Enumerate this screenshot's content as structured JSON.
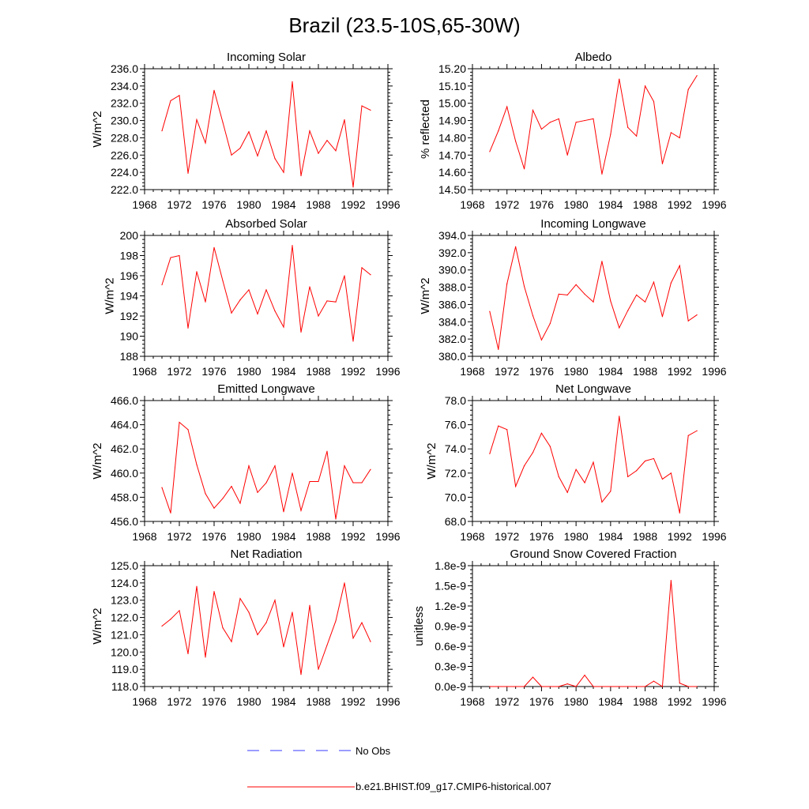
{
  "title": "Brazil (23.5-10S,65-30W)",
  "legend": {
    "entries": [
      {
        "label": "No Obs",
        "color": "#3a3aff",
        "style": "dashed"
      },
      {
        "label": "b.e21.BHIST.f09_g17.CMIP6-historical.007",
        "color": "#ff0000",
        "style": "solid"
      }
    ],
    "placement": "bottom-center"
  },
  "chart_data": [
    {
      "type": "line",
      "title": "Incoming Solar",
      "xlabel": "",
      "ylabel": "W/m^2",
      "xlim": [
        1968,
        1996
      ],
      "ylim": [
        222.0,
        236.0
      ],
      "xticks": [
        "1968",
        "1972",
        "1976",
        "1980",
        "1984",
        "1988",
        "1992",
        "1996"
      ],
      "yticks": [
        "222.0",
        "224.0",
        "226.0",
        "228.0",
        "230.0",
        "232.0",
        "234.0",
        "236.0"
      ],
      "x": [
        1970,
        1971,
        1972,
        1973,
        1974,
        1975,
        1976,
        1977,
        1978,
        1979,
        1980,
        1981,
        1982,
        1983,
        1984,
        1985,
        1986,
        1987,
        1988,
        1989,
        1990,
        1991,
        1992,
        1993,
        1994
      ],
      "series": [
        {
          "color": "#ff0000",
          "values": [
            228.8,
            232.3,
            232.9,
            223.9,
            230.1,
            227.4,
            233.5,
            229.8,
            226.0,
            226.8,
            228.7,
            225.9,
            228.8,
            225.6,
            224.0,
            234.5,
            223.6,
            228.8,
            226.2,
            227.7,
            226.5,
            230.1,
            222.3,
            231.7,
            231.2
          ]
        }
      ]
    },
    {
      "type": "line",
      "title": "Albedo",
      "xlabel": "",
      "ylabel": "% reflected",
      "xlim": [
        1968,
        1996
      ],
      "ylim": [
        14.5,
        15.2
      ],
      "xticks": [
        "1968",
        "1972",
        "1976",
        "1980",
        "1984",
        "1988",
        "1992",
        "1996"
      ],
      "yticks": [
        "14.50",
        "14.60",
        "14.70",
        "14.80",
        "14.90",
        "15.00",
        "15.10",
        "15.20"
      ],
      "x": [
        1970,
        1971,
        1972,
        1973,
        1974,
        1975,
        1976,
        1977,
        1978,
        1979,
        1980,
        1981,
        1982,
        1983,
        1984,
        1985,
        1986,
        1987,
        1988,
        1989,
        1990,
        1991,
        1992,
        1993,
        1994
      ],
      "series": [
        {
          "color": "#ff0000",
          "values": [
            14.72,
            14.84,
            14.98,
            14.78,
            14.62,
            14.96,
            14.85,
            14.89,
            14.91,
            14.7,
            14.89,
            14.9,
            14.91,
            14.59,
            14.82,
            15.14,
            14.86,
            14.81,
            15.1,
            15.01,
            14.65,
            14.83,
            14.8,
            15.08,
            15.16
          ]
        }
      ]
    },
    {
      "type": "line",
      "title": "Absorbed Solar",
      "xlabel": "",
      "ylabel": "W/m^2",
      "xlim": [
        1968,
        1996
      ],
      "ylim": [
        188,
        200
      ],
      "xticks": [
        "1968",
        "1972",
        "1976",
        "1980",
        "1984",
        "1988",
        "1992",
        "1996"
      ],
      "yticks": [
        "188",
        "190",
        "192",
        "194",
        "196",
        "198",
        "200"
      ],
      "x": [
        1970,
        1971,
        1972,
        1973,
        1974,
        1975,
        1976,
        1977,
        1978,
        1979,
        1980,
        1981,
        1982,
        1983,
        1984,
        1985,
        1986,
        1987,
        1988,
        1989,
        1990,
        1991,
        1992,
        1993,
        1994
      ],
      "series": [
        {
          "color": "#ff0000",
          "values": [
            195.1,
            197.8,
            198.0,
            190.8,
            196.4,
            193.4,
            198.8,
            195.5,
            192.3,
            193.6,
            194.6,
            192.2,
            194.6,
            192.5,
            190.9,
            199.0,
            190.4,
            194.9,
            192.0,
            193.5,
            193.4,
            196.0,
            189.5,
            196.8,
            196.1
          ]
        }
      ]
    },
    {
      "type": "line",
      "title": "Incoming Longwave",
      "xlabel": "",
      "ylabel": "W/m^2",
      "xlim": [
        1968,
        1996
      ],
      "ylim": [
        380.0,
        394.0
      ],
      "xticks": [
        "1968",
        "1972",
        "1976",
        "1980",
        "1984",
        "1988",
        "1992",
        "1996"
      ],
      "yticks": [
        "380.0",
        "382.0",
        "384.0",
        "386.0",
        "388.0",
        "390.0",
        "392.0",
        "394.0"
      ],
      "x": [
        1970,
        1971,
        1972,
        1973,
        1974,
        1975,
        1976,
        1977,
        1978,
        1979,
        1980,
        1981,
        1982,
        1983,
        1984,
        1985,
        1986,
        1987,
        1988,
        1989,
        1990,
        1991,
        1992,
        1993,
        1994
      ],
      "series": [
        {
          "color": "#ff0000",
          "values": [
            385.2,
            380.8,
            388.4,
            392.7,
            388.1,
            384.7,
            381.9,
            383.8,
            387.2,
            387.1,
            388.3,
            387.2,
            386.3,
            391.0,
            386.4,
            383.3,
            385.3,
            387.1,
            386.3,
            388.6,
            384.6,
            388.5,
            390.5,
            384.1,
            384.8
          ]
        }
      ]
    },
    {
      "type": "line",
      "title": "Emitted Longwave",
      "xlabel": "",
      "ylabel": "W/m^2",
      "xlim": [
        1968,
        1996
      ],
      "ylim": [
        456.0,
        466.0
      ],
      "xticks": [
        "1968",
        "1972",
        "1976",
        "1980",
        "1984",
        "1988",
        "1992",
        "1996"
      ],
      "yticks": [
        "456.0",
        "458.0",
        "460.0",
        "462.0",
        "464.0",
        "466.0"
      ],
      "x": [
        1970,
        1971,
        1972,
        1973,
        1974,
        1975,
        1976,
        1977,
        1978,
        1979,
        1980,
        1981,
        1982,
        1983,
        1984,
        1985,
        1986,
        1987,
        1988,
        1989,
        1990,
        1991,
        1992,
        1993,
        1994
      ],
      "series": [
        {
          "color": "#ff0000",
          "values": [
            458.8,
            456.7,
            464.2,
            463.6,
            460.7,
            458.3,
            457.1,
            457.9,
            458.9,
            457.5,
            460.6,
            458.4,
            459.2,
            460.6,
            456.8,
            460.0,
            456.9,
            459.3,
            459.3,
            461.8,
            456.2,
            460.6,
            459.2,
            459.2,
            460.3
          ]
        }
      ]
    },
    {
      "type": "line",
      "title": "Net Longwave",
      "xlabel": "",
      "ylabel": "W/m^2",
      "xlim": [
        1968,
        1996
      ],
      "ylim": [
        68.0,
        78.0
      ],
      "xticks": [
        "1968",
        "1972",
        "1976",
        "1980",
        "1984",
        "1988",
        "1992",
        "1996"
      ],
      "yticks": [
        "68.0",
        "70.0",
        "72.0",
        "74.0",
        "76.0",
        "78.0"
      ],
      "x": [
        1970,
        1971,
        1972,
        1973,
        1974,
        1975,
        1976,
        1977,
        1978,
        1979,
        1980,
        1981,
        1982,
        1983,
        1984,
        1985,
        1986,
        1987,
        1988,
        1989,
        1990,
        1991,
        1992,
        1993,
        1994
      ],
      "series": [
        {
          "color": "#ff0000",
          "values": [
            73.6,
            75.9,
            75.6,
            70.9,
            72.6,
            73.7,
            75.3,
            74.2,
            71.7,
            70.4,
            72.3,
            71.2,
            72.9,
            69.6,
            70.5,
            76.7,
            71.7,
            72.2,
            73.0,
            73.2,
            71.5,
            72.0,
            68.7,
            75.1,
            75.5
          ]
        }
      ]
    },
    {
      "type": "line",
      "title": "Net Radiation",
      "xlabel": "",
      "ylabel": "W/m^2",
      "xlim": [
        1968,
        1996
      ],
      "ylim": [
        118.0,
        125.0
      ],
      "xticks": [
        "1968",
        "1972",
        "1976",
        "1980",
        "1984",
        "1988",
        "1992",
        "1996"
      ],
      "yticks": [
        "118.0",
        "119.0",
        "120.0",
        "121.0",
        "122.0",
        "123.0",
        "124.0",
        "125.0"
      ],
      "x": [
        1970,
        1971,
        1972,
        1973,
        1974,
        1975,
        1976,
        1977,
        1978,
        1979,
        1980,
        1981,
        1982,
        1983,
        1984,
        1985,
        1986,
        1987,
        1988,
        1989,
        1990,
        1991,
        1992,
        1993,
        1994
      ],
      "series": [
        {
          "color": "#ff0000",
          "values": [
            121.5,
            121.9,
            122.4,
            119.9,
            123.8,
            119.7,
            123.5,
            121.4,
            120.6,
            123.1,
            122.3,
            121.0,
            121.7,
            123.0,
            120.3,
            122.3,
            118.7,
            122.7,
            119.0,
            120.4,
            121.8,
            124.0,
            120.8,
            121.7,
            120.6
          ]
        }
      ]
    },
    {
      "type": "line",
      "title": "Ground Snow Covered Fraction",
      "xlabel": "",
      "ylabel": "unitless",
      "xlim": [
        1968,
        1996
      ],
      "ylim": [
        0,
        1.8e-09
      ],
      "xticks": [
        "1968",
        "1972",
        "1976",
        "1980",
        "1984",
        "1988",
        "1992",
        "1996"
      ],
      "yticks": [
        "0.0e-9",
        "0.3e-9",
        "0.6e-9",
        "0.9e-9",
        "1.2e-9",
        "1.5e-9",
        "1.8e-9"
      ],
      "x": [
        1970,
        1971,
        1972,
        1973,
        1974,
        1975,
        1976,
        1977,
        1978,
        1979,
        1980,
        1981,
        1982,
        1983,
        1984,
        1985,
        1986,
        1987,
        1988,
        1989,
        1990,
        1991,
        1992,
        1993,
        1994
      ],
      "series": [
        {
          "color": "#ff0000",
          "values": [
            0,
            0,
            0,
            0,
            0,
            1.4e-10,
            0,
            0,
            0,
            4e-11,
            0,
            1.7e-10,
            0,
            0,
            0,
            0,
            0,
            0,
            0,
            8e-11,
            0,
            1.58e-09,
            5e-11,
            0,
            0
          ]
        }
      ]
    }
  ]
}
